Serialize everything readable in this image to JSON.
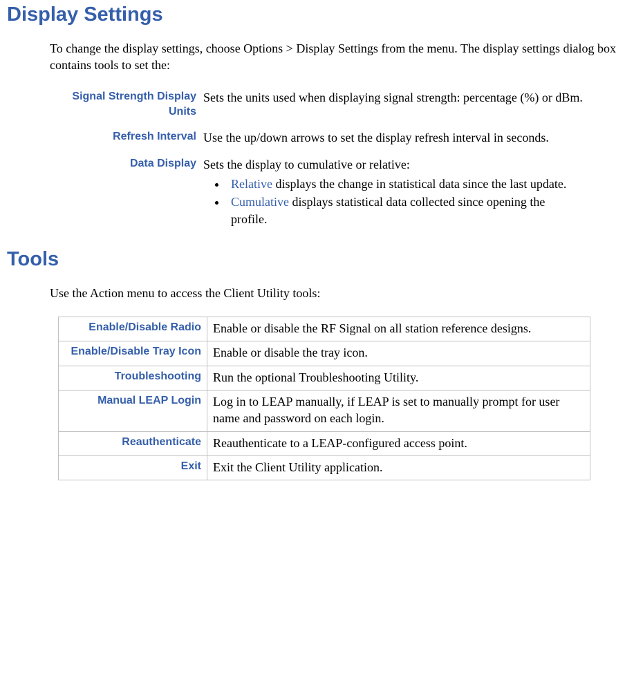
{
  "colors": {
    "heading": "#355fab",
    "text": "#000000",
    "border": "#c0c0c0",
    "background": "#ffffff"
  },
  "heading1": "Display Settings",
  "intro1": "To change the display settings, choose Options > Display Settings from the menu. The display settings dialog box contains tools to set the:",
  "defs": [
    {
      "term": "Signal Strength Display Units",
      "desc": "Sets the units used when displaying signal strength: percentage (%) or dBm."
    },
    {
      "term": "Refresh Interval",
      "desc": "Use the up/down arrows to set the display refresh interval in seconds."
    },
    {
      "term": "Data Display",
      "desc_intro": "Sets the display to cumulative or relative:",
      "items": [
        {
          "keyword": "Relative",
          "rest": " displays the change in statistical data since the last update."
        },
        {
          "keyword": "Cumulative",
          "rest": " displays statistical data collected since opening the profile."
        }
      ]
    }
  ],
  "heading2": "Tools",
  "intro2": "Use the Action menu to access the  Client Utility tools:",
  "tools": [
    {
      "name": "Enable/Disable Radio",
      "desc": "Enable or disable the RF Signal on all  station reference designs."
    },
    {
      "name": "Enable/Disable Tray Icon",
      "desc": "Enable or disable the tray icon."
    },
    {
      "name": "Troubleshooting",
      "desc": "Run the optional Troubleshooting Utility."
    },
    {
      "name": "Manual LEAP Login",
      "desc": "Log in to LEAP manually, if LEAP is set to manually prompt for user name and password on each login."
    },
    {
      "name": "Reauthenticate",
      "desc": "Reauthenticate to a LEAP-configured access point."
    },
    {
      "name": "Exit",
      "desc": "Exit the  Client Utility application."
    }
  ]
}
